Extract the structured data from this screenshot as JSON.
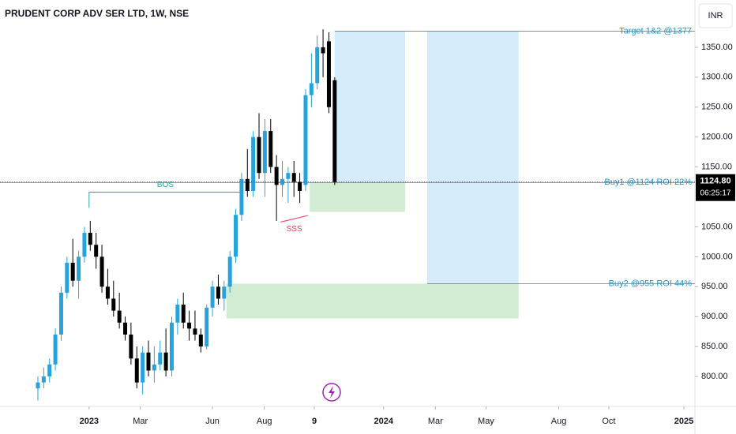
{
  "chart_data": {
    "type": "candlestick",
    "title": "PRUDENT CORP ADV SER LTD, 1W, NSE",
    "currency": "INR",
    "up_color": "#26a3dd",
    "down_color": "#000000",
    "open": [
      780,
      790,
      800,
      820,
      870,
      940,
      990,
      960,
      1000,
      1040,
      1020,
      1000,
      950,
      930,
      910,
      890,
      870,
      830,
      790,
      840,
      810,
      820,
      840,
      810,
      890,
      920,
      890,
      880,
      870,
      850,
      915,
      950,
      930,
      950,
      1000,
      1070,
      1130,
      1110,
      1200,
      1140,
      1210,
      1150,
      1120,
      1130,
      1140,
      1125,
      1120,
      1270,
      1290,
      1350,
      1360,
      1295
    ],
    "high": [
      800,
      815,
      830,
      880,
      950,
      1000,
      1030,
      1010,
      1050,
      1060,
      1040,
      1020,
      980,
      960,
      940,
      900,
      890,
      850,
      850,
      860,
      850,
      860,
      880,
      900,
      930,
      940,
      910,
      910,
      880,
      920,
      960,
      970,
      960,
      1010,
      1080,
      1140,
      1180,
      1210,
      1240,
      1230,
      1230,
      1170,
      1160,
      1150,
      1160,
      1140,
      1280,
      1340,
      1370,
      1380,
      1375,
      1300
    ],
    "low": [
      760,
      780,
      790,
      810,
      860,
      930,
      950,
      930,
      990,
      1010,
      980,
      940,
      920,
      900,
      880,
      860,
      820,
      780,
      770,
      800,
      790,
      810,
      800,
      800,
      870,
      880,
      860,
      860,
      840,
      845,
      900,
      920,
      910,
      940,
      990,
      1060,
      1100,
      1100,
      1130,
      1100,
      1140,
      1060,
      1100,
      1090,
      1100,
      1090,
      1110,
      1250,
      1280,
      1300,
      1240,
      1120
    ],
    "close": [
      790,
      800,
      820,
      870,
      940,
      990,
      960,
      1000,
      1040,
      1020,
      1000,
      950,
      930,
      910,
      890,
      870,
      830,
      790,
      840,
      810,
      820,
      840,
      810,
      890,
      920,
      890,
      880,
      870,
      850,
      915,
      950,
      930,
      950,
      1000,
      1070,
      1130,
      1110,
      1200,
      1140,
      1210,
      1150,
      1120,
      1130,
      1140,
      1125,
      1110,
      1270,
      1290,
      1350,
      1340,
      1250,
      1124.8
    ],
    "xlim": [
      -6.51,
      112.9
    ],
    "xticks": [
      {
        "value": 8.8,
        "label": "2023"
      },
      {
        "value": 17.6,
        "label": "Mar"
      },
      {
        "value": 30,
        "label": "Jun"
      },
      {
        "value": 38.9,
        "label": "Aug"
      },
      {
        "value": 47.5,
        "label": "9"
      },
      {
        "value": 59.4,
        "label": "2024"
      },
      {
        "value": 68.3,
        "label": "Mar"
      },
      {
        "value": 77,
        "label": "May"
      },
      {
        "value": 89.5,
        "label": "Aug"
      },
      {
        "value": 98.1,
        "label": "Oct"
      },
      {
        "value": 111,
        "label": "2025"
      }
    ],
    "ylim": [
      750,
      1429
    ],
    "yticks": [
      {
        "value": 800,
        "label": "800.00"
      },
      {
        "value": 850,
        "label": "850.00"
      },
      {
        "value": 900,
        "label": "900.00"
      },
      {
        "value": 950,
        "label": "950.00"
      },
      {
        "value": 1000,
        "label": "1000.00"
      },
      {
        "value": 1050,
        "label": "1050.00"
      },
      {
        "value": 1150,
        "label": "1150.00"
      },
      {
        "value": 1200,
        "label": "1200.00"
      },
      {
        "value": 1250,
        "label": "1250.00"
      },
      {
        "value": 1300,
        "label": "1300.00"
      },
      {
        "value": 1350,
        "label": "1350.00"
      }
    ],
    "last_price": {
      "value": 1124.8,
      "label": "1124.80"
    },
    "countdown": "06:25:17",
    "zones": [
      {
        "x": [
          51,
          63.1
        ],
        "y": [
          1124.8,
          1377
        ],
        "color": "#d4ecf9"
      },
      {
        "x": [
          46.7,
          63.1
        ],
        "y": [
          1075,
          1124
        ],
        "color": "#d2ebd3"
      },
      {
        "x": [
          66.9,
          82.6
        ],
        "y": [
          955,
          1377
        ],
        "color": "#d4ecf9"
      },
      {
        "x": [
          32.4,
          82.6
        ],
        "y": [
          897,
          955
        ],
        "color": "#d2ebd3"
      }
    ],
    "levels": [
      {
        "value": 1377,
        "x": [
          51,
          112.9
        ],
        "label": "Target 1&2 @1377",
        "color": "#2196d3"
      },
      {
        "value": 1124,
        "x": [
          -6.51,
          112.9
        ],
        "label": "Buy1 @1124 ROI 22%",
        "color": "#2196d3"
      },
      {
        "value": 955,
        "x": [
          66.9,
          112.9
        ],
        "label": "Buy2 @955 ROI 44%",
        "color": "#2196d3"
      }
    ],
    "bos": {
      "label": "BOS",
      "value": 1108,
      "x": [
        8.8,
        35
      ],
      "color": "#26a69a"
    },
    "sss": {
      "label": "SSS",
      "x": [
        41.7,
        46.4
      ],
      "y": [
        1058,
        1069
      ],
      "color": "#e53950"
    }
  }
}
